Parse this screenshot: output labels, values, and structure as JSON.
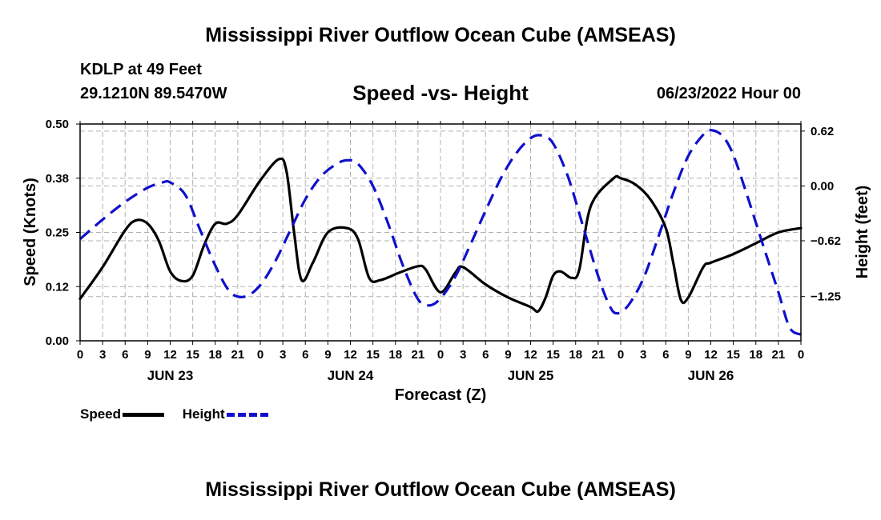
{
  "title": "Mississippi River Outflow Ocean Cube (AMSEAS)",
  "footer_title": "Mississippi River Outflow Ocean Cube (AMSEAS)",
  "station": "KDLP at 49 Feet",
  "coords": "29.1210N  89.5470W",
  "subtitle": "Speed -vs- Height",
  "datetime": "06/23/2022 Hour 00",
  "colors": {
    "speed": "#000000",
    "height": "#1010cc",
    "grid": "#b0b0b0"
  },
  "chart_data": {
    "type": "line",
    "title": "Speed -vs- Height",
    "xlabel": "Forecast (Z)",
    "ylabel": "Speed (Knots)",
    "y2label": "Height (feet)",
    "xlim": [
      0,
      96
    ],
    "ylim": [
      0,
      0.5
    ],
    "y2lim": [
      -1.75,
      0.7
    ],
    "x_ticks": [
      0,
      3,
      6,
      9,
      12,
      15,
      18,
      21,
      24,
      27,
      30,
      33,
      36,
      39,
      42,
      45,
      48,
      51,
      54,
      57,
      60,
      63,
      66,
      69,
      72,
      75,
      78,
      81,
      84,
      87,
      90,
      93,
      96
    ],
    "x_tick_labels": [
      "0",
      "3",
      "6",
      "9",
      "12",
      "15",
      "18",
      "21",
      "0",
      "3",
      "6",
      "9",
      "12",
      "15",
      "18",
      "21",
      "0",
      "3",
      "6",
      "9",
      "12",
      "15",
      "18",
      "21",
      "0",
      "3",
      "6",
      "9",
      "12",
      "15",
      "18",
      "21",
      "0"
    ],
    "day_labels": [
      {
        "x": 12,
        "label": "JUN 23"
      },
      {
        "x": 36,
        "label": "JUN 24"
      },
      {
        "x": 60,
        "label": "JUN 25"
      },
      {
        "x": 84,
        "label": "JUN 26"
      }
    ],
    "y_ticks": [
      0,
      0.125,
      0.25,
      0.375,
      0.5
    ],
    "y_tick_labels": [
      "0.00",
      "0.12",
      "0.25",
      "0.38",
      "0.50"
    ],
    "y2_ticks": [
      0.62,
      0.0,
      -0.62,
      -1.25
    ],
    "y2_tick_labels": [
      "0.62",
      "0.00",
      "−0.62",
      "−1.25"
    ],
    "grid": true,
    "legend_position": "bottom-left",
    "series": [
      {
        "name": "Speed",
        "axis": "left",
        "style": "solid",
        "points": [
          [
            0,
            0.097
          ],
          [
            3,
            0.17
          ],
          [
            6,
            0.255
          ],
          [
            7.5,
            0.278
          ],
          [
            9,
            0.27
          ],
          [
            10.5,
            0.23
          ],
          [
            12,
            0.16
          ],
          [
            13.5,
            0.138
          ],
          [
            15,
            0.15
          ],
          [
            16.5,
            0.22
          ],
          [
            18,
            0.27
          ],
          [
            19.5,
            0.27
          ],
          [
            21,
            0.29
          ],
          [
            24,
            0.37
          ],
          [
            26.5,
            0.419
          ],
          [
            27.5,
            0.39
          ],
          [
            28.5,
            0.25
          ],
          [
            29.5,
            0.14
          ],
          [
            31,
            0.18
          ],
          [
            33,
            0.25
          ],
          [
            35.5,
            0.26
          ],
          [
            37,
            0.235
          ],
          [
            38.5,
            0.145
          ],
          [
            40,
            0.14
          ],
          [
            42.5,
            0.157
          ],
          [
            45,
            0.172
          ],
          [
            46,
            0.165
          ],
          [
            48,
            0.112
          ],
          [
            50,
            0.158
          ],
          [
            51,
            0.17
          ],
          [
            54,
            0.13
          ],
          [
            57,
            0.1
          ],
          [
            60,
            0.078
          ],
          [
            61,
            0.068
          ],
          [
            62,
            0.1
          ],
          [
            63,
            0.15
          ],
          [
            64,
            0.16
          ],
          [
            65.5,
            0.145
          ],
          [
            66.5,
            0.165
          ],
          [
            68,
            0.31
          ],
          [
            71,
            0.374
          ],
          [
            72,
            0.375
          ],
          [
            74,
            0.36
          ],
          [
            76,
            0.325
          ],
          [
            78,
            0.26
          ],
          [
            79,
            0.18
          ],
          [
            80,
            0.095
          ],
          [
            81,
            0.1
          ],
          [
            83,
            0.17
          ],
          [
            84,
            0.18
          ],
          [
            87,
            0.2
          ],
          [
            90,
            0.225
          ],
          [
            93,
            0.25
          ],
          [
            96,
            0.26
          ]
        ]
      },
      {
        "name": "Height",
        "axis": "right",
        "style": "dashed",
        "points": [
          [
            0,
            -0.6
          ],
          [
            3,
            -0.38
          ],
          [
            6,
            -0.18
          ],
          [
            9,
            -0.02
          ],
          [
            11,
            0.04
          ],
          [
            12,
            0.04
          ],
          [
            14,
            -0.1
          ],
          [
            16,
            -0.5
          ],
          [
            18,
            -0.9
          ],
          [
            20,
            -1.2
          ],
          [
            22,
            -1.25
          ],
          [
            24,
            -1.12
          ],
          [
            26,
            -0.85
          ],
          [
            28,
            -0.5
          ],
          [
            30,
            -0.15
          ],
          [
            32,
            0.1
          ],
          [
            34,
            0.24
          ],
          [
            35.5,
            0.29
          ],
          [
            37,
            0.25
          ],
          [
            39,
            0.0
          ],
          [
            41,
            -0.42
          ],
          [
            43,
            -0.9
          ],
          [
            45,
            -1.28
          ],
          [
            46.5,
            -1.35
          ],
          [
            48,
            -1.27
          ],
          [
            50,
            -1.02
          ],
          [
            52,
            -0.66
          ],
          [
            54,
            -0.28
          ],
          [
            56,
            0.08
          ],
          [
            58,
            0.36
          ],
          [
            60,
            0.54
          ],
          [
            61.5,
            0.57
          ],
          [
            63,
            0.48
          ],
          [
            65,
            0.1
          ],
          [
            67,
            -0.46
          ],
          [
            69,
            -1.02
          ],
          [
            70.5,
            -1.35
          ],
          [
            71.5,
            -1.44
          ],
          [
            73,
            -1.35
          ],
          [
            75,
            -1.05
          ],
          [
            77,
            -0.58
          ],
          [
            79,
            -0.08
          ],
          [
            81,
            0.34
          ],
          [
            83,
            0.58
          ],
          [
            84,
            0.63
          ],
          [
            85.5,
            0.57
          ],
          [
            87,
            0.35
          ],
          [
            89,
            -0.15
          ],
          [
            91,
            -0.68
          ],
          [
            93,
            -1.2
          ],
          [
            94.5,
            -1.6
          ],
          [
            96,
            -1.68
          ]
        ]
      }
    ]
  },
  "legend": {
    "speed_label": "Speed",
    "height_label": "Height"
  }
}
